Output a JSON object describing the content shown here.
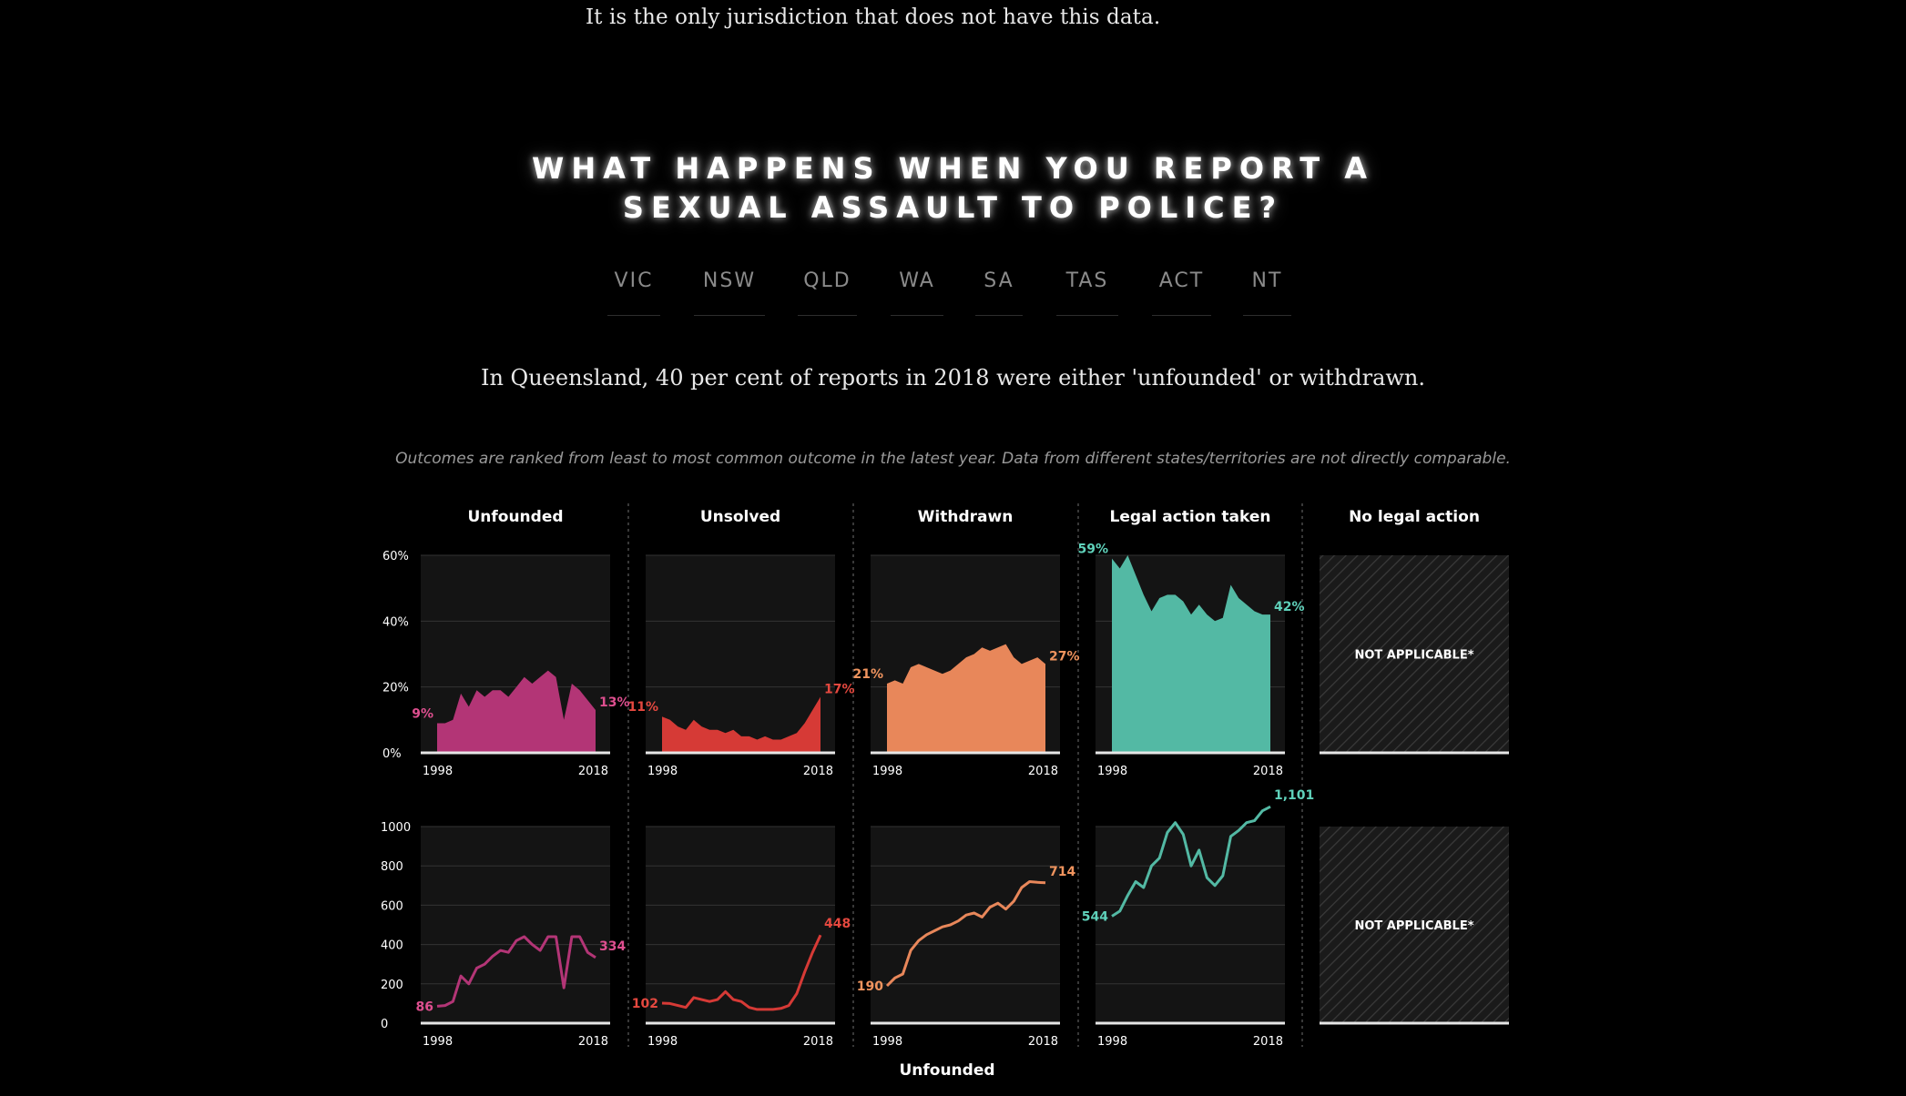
{
  "intro": {
    "text": "It is the only jurisdiction that does not have this data."
  },
  "heading": {
    "line1": "WHAT HAPPENS WHEN YOU REPORT A",
    "line2": "SEXUAL ASSAULT TO POLICE?"
  },
  "tabs": [
    {
      "label": "VIC",
      "active": false
    },
    {
      "label": "NSW",
      "active": false
    },
    {
      "label": "QLD",
      "active": true
    },
    {
      "label": "WA",
      "active": false
    },
    {
      "label": "SA",
      "active": false
    },
    {
      "label": "TAS",
      "active": false
    },
    {
      "label": "ACT",
      "active": false
    },
    {
      "label": "NT",
      "active": false
    }
  ],
  "summary": {
    "text": "In Queensland, 40 per cent of reports in 2018 were either 'unfounded' or withdrawn."
  },
  "note": {
    "text": "Outcomes are ranked from least to most common outcome in the latest year. Data from different states/territories are not directly comparable."
  },
  "footer": {
    "label": "Unfounded"
  },
  "chart_data": {
    "type": "area",
    "years": [
      1998,
      2018
    ],
    "x_tick_labels": [
      "1998",
      "2018"
    ],
    "percent_axis": {
      "ticks": [
        "60%",
        "40%",
        "20%",
        "0%"
      ],
      "ylim": [
        0,
        60
      ]
    },
    "count_axis": {
      "ticks": [
        "1000",
        "800",
        "600",
        "400",
        "200",
        "0"
      ],
      "ylim": [
        0,
        1000
      ]
    },
    "not_applicable_label": "NOT APPLICABLE*",
    "series": [
      {
        "name": "Unfounded",
        "color": "#b33576",
        "label_color": "#de4f8f",
        "percent_values": [
          9,
          9,
          10,
          18,
          14,
          19,
          17,
          19,
          19,
          17,
          20,
          23,
          21,
          23,
          25,
          23,
          10,
          21,
          19,
          16,
          13
        ],
        "percent_start_label": "9%",
        "percent_end_label": "13%",
        "count_values": [
          86,
          90,
          110,
          240,
          200,
          280,
          300,
          340,
          370,
          360,
          420,
          440,
          400,
          370,
          440,
          440,
          180,
          440,
          440,
          360,
          334
        ],
        "count_start_label": "86",
        "count_end_label": "334"
      },
      {
        "name": "Unsolved",
        "color": "#d63a36",
        "label_color": "#e4483f",
        "percent_values": [
          11,
          10,
          8,
          7,
          10,
          8,
          7,
          7,
          6,
          7,
          5,
          5,
          4,
          5,
          4,
          4,
          5,
          6,
          9,
          13,
          17
        ],
        "percent_start_label": "11%",
        "percent_end_label": "17%",
        "count_values": [
          102,
          100,
          90,
          80,
          130,
          120,
          110,
          120,
          160,
          120,
          110,
          80,
          70,
          70,
          70,
          75,
          90,
          150,
          260,
          360,
          448
        ],
        "count_start_label": "102",
        "count_end_label": "448"
      },
      {
        "name": "Withdrawn",
        "color": "#e8875a",
        "label_color": "#f0945e",
        "percent_values": [
          21,
          22,
          21,
          26,
          27,
          26,
          25,
          24,
          25,
          27,
          29,
          30,
          32,
          31,
          32,
          33,
          29,
          27,
          28,
          29,
          27
        ],
        "percent_start_label": "21%",
        "percent_end_label": "27%",
        "count_values": [
          190,
          230,
          250,
          370,
          420,
          450,
          470,
          490,
          500,
          520,
          550,
          560,
          540,
          590,
          610,
          580,
          620,
          690,
          720,
          716,
          714
        ],
        "count_start_label": "190",
        "count_end_label": "714"
      },
      {
        "name": "Legal action taken",
        "color": "#53b9a4",
        "label_color": "#5fd1ba",
        "percent_values": [
          59,
          56,
          60,
          54,
          48,
          43,
          47,
          48,
          48,
          46,
          42,
          45,
          42,
          40,
          41,
          51,
          47,
          45,
          43,
          42,
          42
        ],
        "percent_start_label": "59%",
        "percent_end_label": "42%",
        "count_values": [
          544,
          570,
          650,
          720,
          690,
          800,
          840,
          970,
          1020,
          960,
          800,
          880,
          740,
          700,
          750,
          950,
          980,
          1020,
          1030,
          1080,
          1101
        ],
        "count_start_label": "544",
        "count_end_label": "1,101"
      },
      {
        "name": "No legal action",
        "not_applicable": true
      }
    ]
  }
}
